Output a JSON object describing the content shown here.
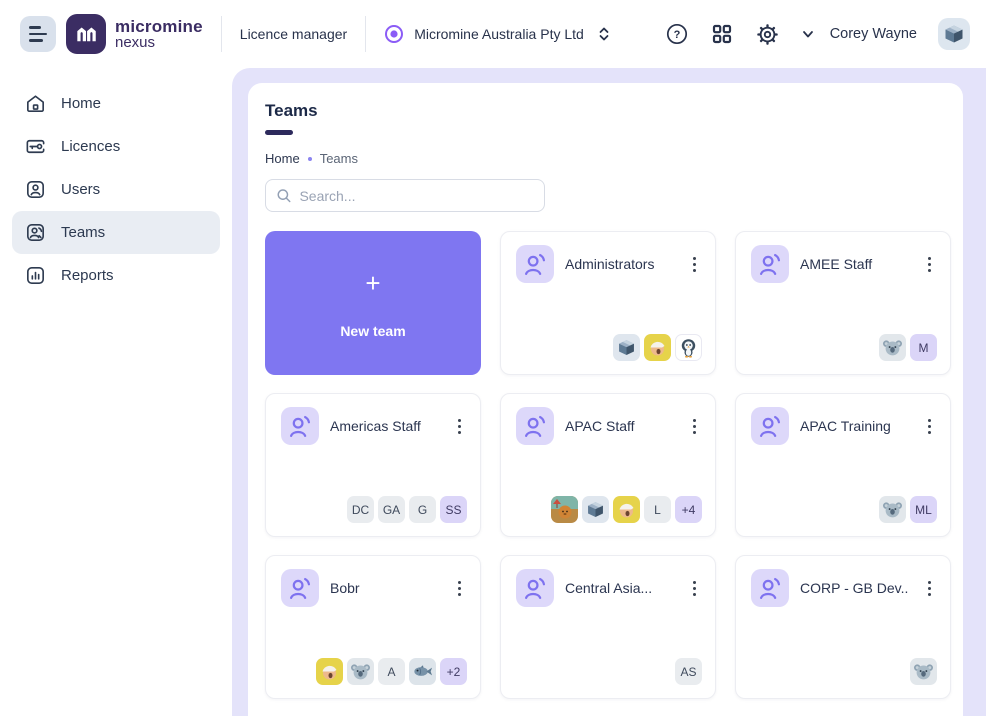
{
  "header": {
    "logo_line1": "micromine",
    "logo_line2": "nexus",
    "product_label": "Licence manager",
    "company_name": "Micromine Australia Pty Ltd",
    "user_name": "Corey Wayne"
  },
  "sidebar": {
    "items": [
      {
        "label": "Home",
        "icon": "home-icon",
        "active": false
      },
      {
        "label": "Licences",
        "icon": "licences-icon",
        "active": false
      },
      {
        "label": "Users",
        "icon": "users-icon",
        "active": false
      },
      {
        "label": "Teams",
        "icon": "teams-icon",
        "active": true
      },
      {
        "label": "Reports",
        "icon": "reports-icon",
        "active": false
      }
    ]
  },
  "main": {
    "title": "Teams",
    "breadcrumb": [
      "Home",
      "Teams"
    ],
    "search_placeholder": "Search...",
    "new_team_label": "New team",
    "teams": [
      {
        "name": "Administrators",
        "members": [
          {
            "type": "image",
            "image": "cube-avatar"
          },
          {
            "type": "image",
            "image": "person-yellow-avatar"
          },
          {
            "type": "image",
            "image": "penguin-avatar"
          }
        ]
      },
      {
        "name": "AMEE Staff",
        "members": [
          {
            "type": "image",
            "image": "koala-avatar"
          },
          {
            "type": "initials",
            "text": "M",
            "variant": "purple"
          }
        ]
      },
      {
        "name": "Americas Staff",
        "members": [
          {
            "type": "initials",
            "text": "DC",
            "variant": "gray"
          },
          {
            "type": "initials",
            "text": "GA",
            "variant": "gray"
          },
          {
            "type": "initials",
            "text": "G",
            "variant": "gray"
          },
          {
            "type": "initials",
            "text": "SS",
            "variant": "purple"
          }
        ]
      },
      {
        "name": "APAC Staff",
        "members": [
          {
            "type": "image",
            "image": "cat-avatar"
          },
          {
            "type": "image",
            "image": "cube-avatar"
          },
          {
            "type": "image",
            "image": "person-yellow-avatar"
          },
          {
            "type": "initials",
            "text": "L",
            "variant": "gray"
          },
          {
            "type": "initials",
            "text": "+4",
            "variant": "purple"
          }
        ]
      },
      {
        "name": "APAC Training",
        "members": [
          {
            "type": "image",
            "image": "koala-avatar"
          },
          {
            "type": "initials",
            "text": "ML",
            "variant": "purple"
          }
        ]
      },
      {
        "name": "Bobr",
        "members": [
          {
            "type": "image",
            "image": "person-yellow-avatar"
          },
          {
            "type": "image",
            "image": "koala-avatar"
          },
          {
            "type": "initials",
            "text": "A",
            "variant": "gray"
          },
          {
            "type": "image",
            "image": "fish-avatar"
          },
          {
            "type": "initials",
            "text": "+2",
            "variant": "purple"
          }
        ]
      },
      {
        "name": "Central Asia...",
        "members": [
          {
            "type": "initials",
            "text": "AS",
            "variant": "gray"
          }
        ]
      },
      {
        "name": "CORP - GB Dev...",
        "members": [
          {
            "type": "image",
            "image": "koala-avatar"
          }
        ]
      }
    ]
  },
  "colors": {
    "accent_purple": "#7f76f1",
    "logo_purple": "#3b2d63",
    "lavender_bg": "#e4e3fa",
    "radio_purple": "#8b5cf6",
    "badge_purple_bg": "#dbd5f8",
    "badge_gray_bg": "#e9ecef",
    "sidebar_active_bg": "#e9edf3",
    "text_dark": "#28324b"
  }
}
